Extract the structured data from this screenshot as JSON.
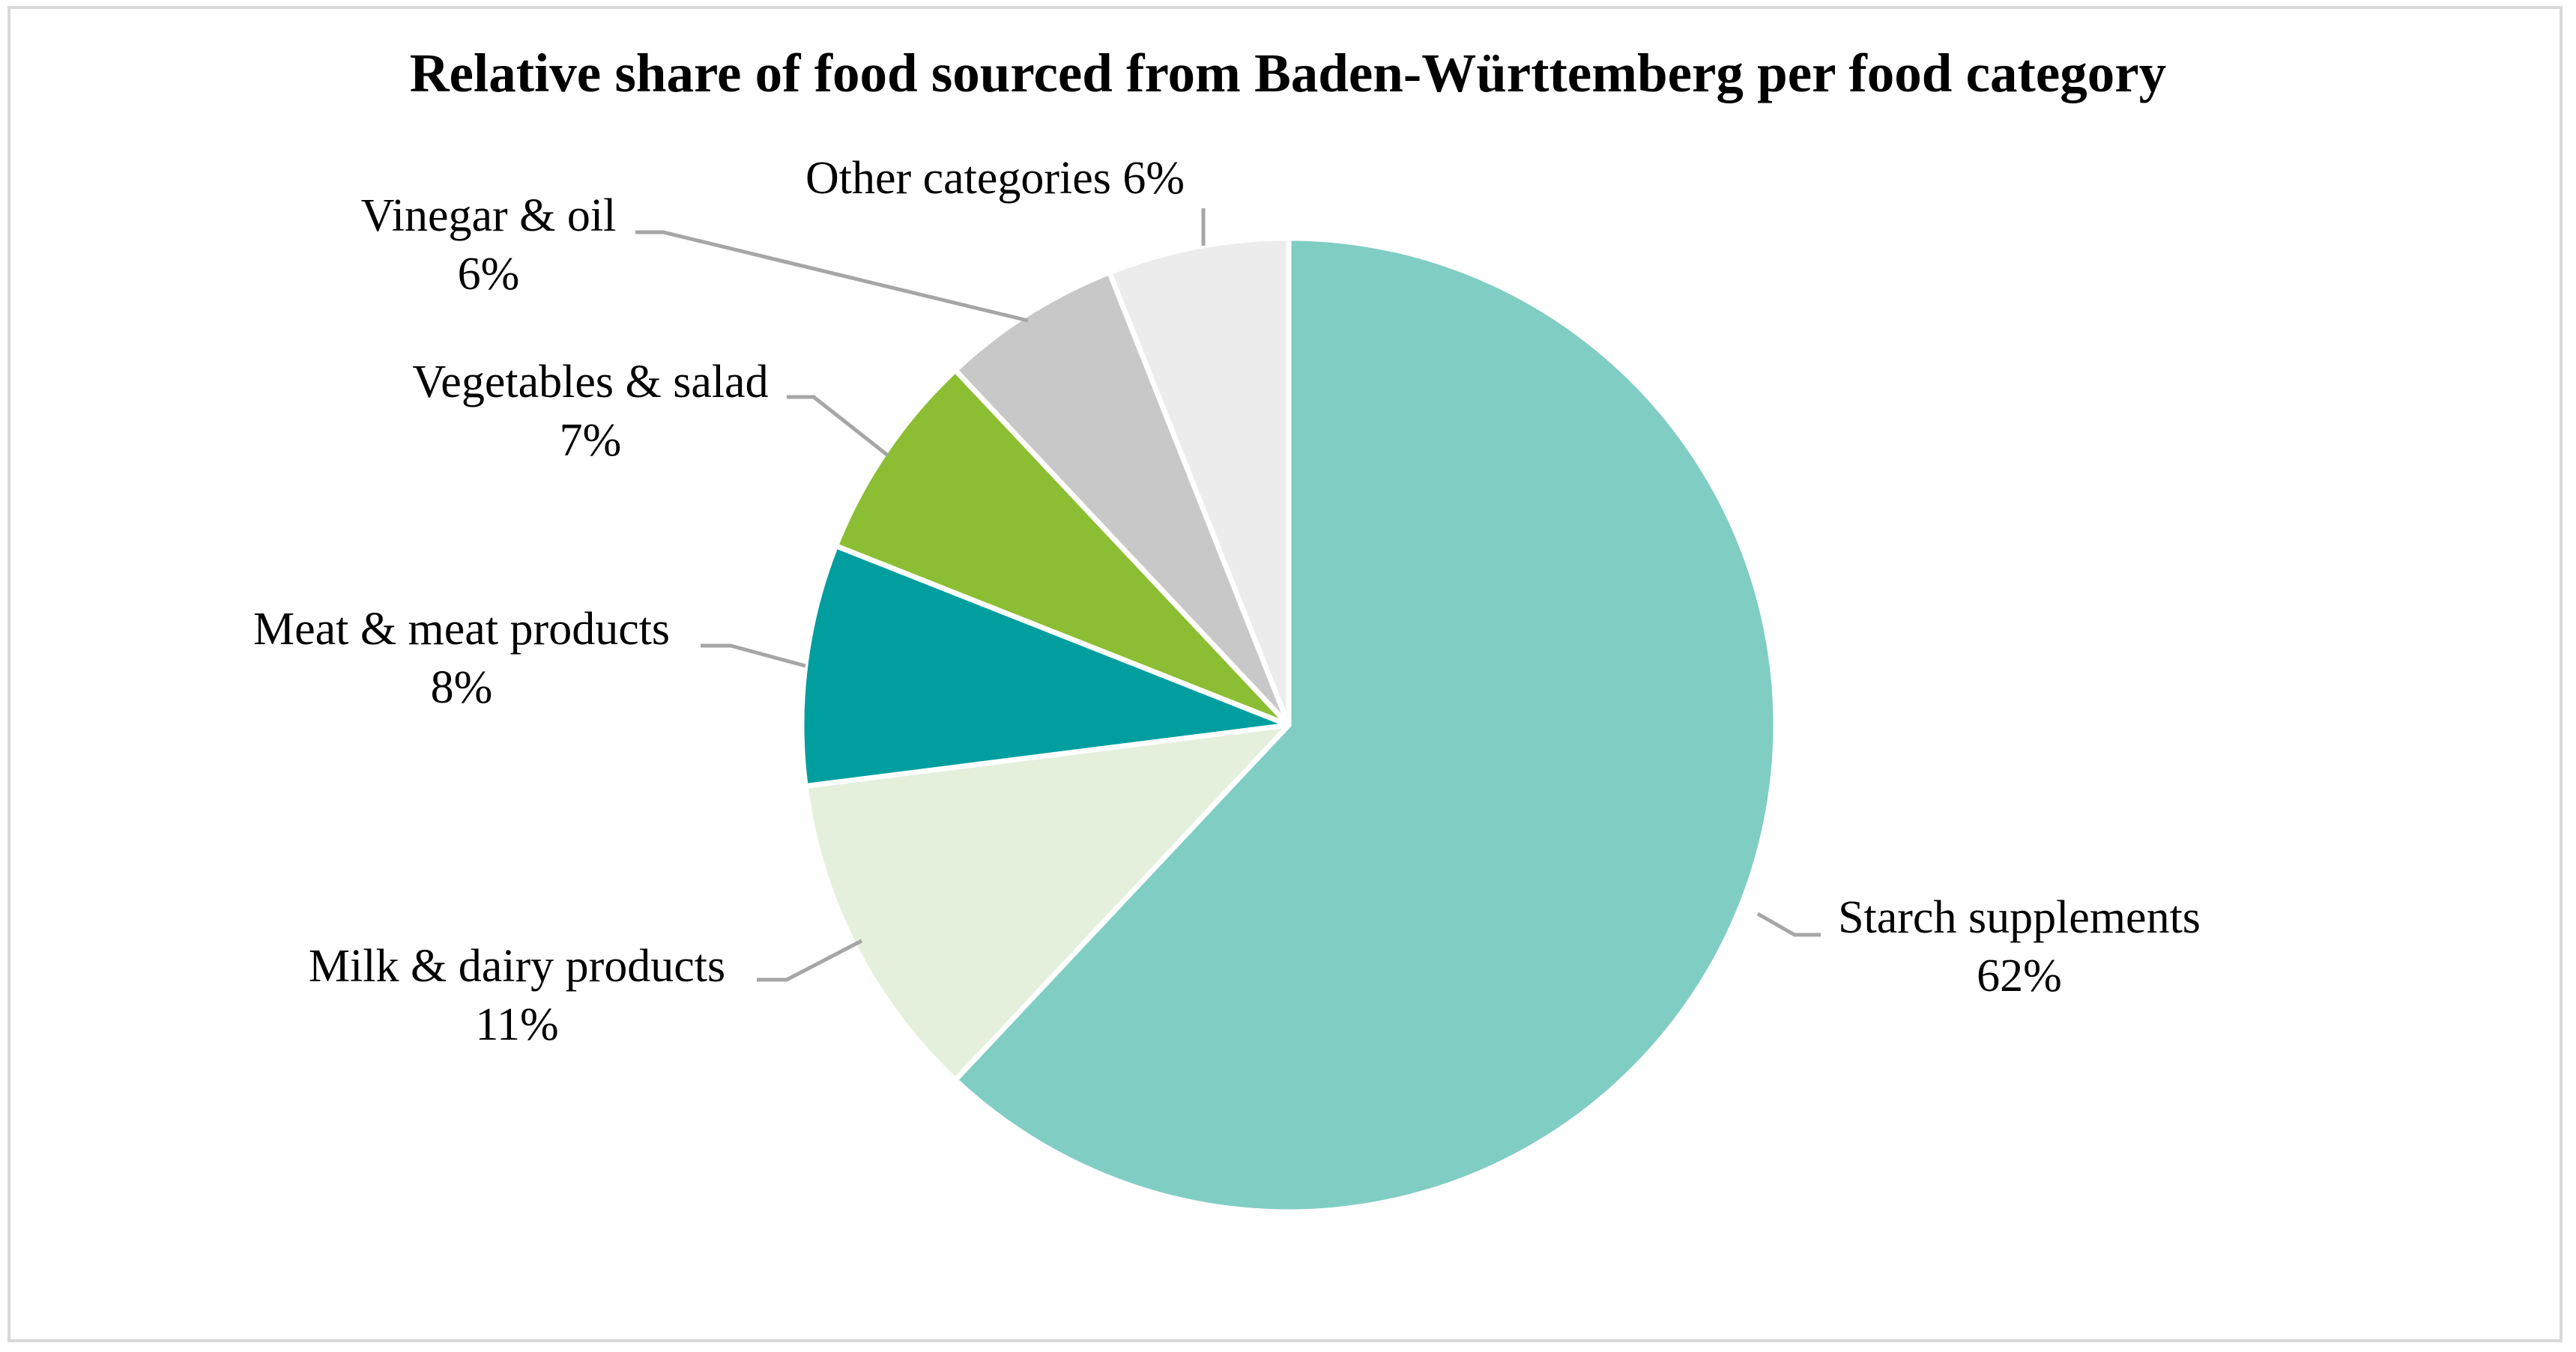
{
  "chart_data": {
    "type": "pie",
    "title": "Relative share of food sourced from Baden-Württemberg per food category",
    "slices": [
      {
        "name": "Starch supplements",
        "value_label": "62%",
        "value": 62,
        "color": "#80cdc4"
      },
      {
        "name": "Milk & dairy products",
        "value_label": "11%",
        "value": 11,
        "color": "#e4f0dc"
      },
      {
        "name": "Meat & meat products",
        "value_label": "8%",
        "value": 8,
        "color": "#009e9f"
      },
      {
        "name": "Vegetables & salad",
        "value_label": "7%",
        "value": 7,
        "color": "#8bbe33"
      },
      {
        "name": "Vinegar & oil",
        "value_label": "6%",
        "value": 6,
        "color": "#c8c8c8"
      },
      {
        "name": "Other categories",
        "value_label": "6%",
        "value": 6,
        "color": "#ececec"
      }
    ],
    "start_angle_deg": 0,
    "direction": "clockwise",
    "legend": "none"
  }
}
